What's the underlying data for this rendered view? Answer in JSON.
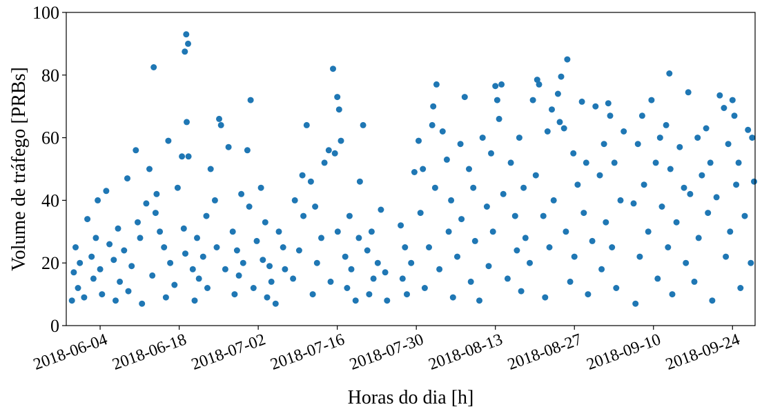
{
  "chart_data": {
    "type": "scatter",
    "title": "",
    "xlabel": "Horas do dia [h]",
    "ylabel": "Volume de tráfego [PRBs]",
    "ylim": [
      0,
      100
    ],
    "yticks": [
      "0",
      "20",
      "40",
      "60",
      "80",
      "100"
    ],
    "xlim": [
      "2018-05-29",
      "2018-09-28"
    ],
    "xticks": [
      "2018-06-04",
      "2018-06-18",
      "2018-07-02",
      "2018-07-16",
      "2018-07-30",
      "2018-08-13",
      "2018-08-27",
      "2018-09-10",
      "2018-09-24"
    ],
    "grid": false,
    "marker_color": "#1f77b4",
    "points": [
      [
        "2018-05-30",
        8
      ],
      [
        "2018-05-30",
        17
      ],
      [
        "2018-05-30",
        25
      ],
      [
        "2018-05-31",
        12
      ],
      [
        "2018-05-31",
        20
      ],
      [
        "2018-06-01",
        34
      ],
      [
        "2018-06-01",
        9
      ],
      [
        "2018-06-02",
        22
      ],
      [
        "2018-06-02",
        15
      ],
      [
        "2018-06-03",
        28
      ],
      [
        "2018-06-03",
        40
      ],
      [
        "2018-06-04",
        18
      ],
      [
        "2018-06-04",
        10
      ],
      [
        "2018-06-05",
        26
      ],
      [
        "2018-06-05",
        43
      ],
      [
        "2018-06-06",
        21
      ],
      [
        "2018-06-06",
        8
      ],
      [
        "2018-06-07",
        31
      ],
      [
        "2018-06-07",
        14
      ],
      [
        "2018-06-08",
        47
      ],
      [
        "2018-06-08",
        24
      ],
      [
        "2018-06-09",
        19
      ],
      [
        "2018-06-09",
        11
      ],
      [
        "2018-06-10",
        56
      ],
      [
        "2018-06-10",
        33
      ],
      [
        "2018-06-11",
        28
      ],
      [
        "2018-06-11",
        7
      ],
      [
        "2018-06-12",
        50
      ],
      [
        "2018-06-12",
        39
      ],
      [
        "2018-06-13",
        82.5
      ],
      [
        "2018-06-13",
        36
      ],
      [
        "2018-06-13",
        16
      ],
      [
        "2018-06-14",
        30
      ],
      [
        "2018-06-14",
        42
      ],
      [
        "2018-06-15",
        25
      ],
      [
        "2018-06-15",
        9
      ],
      [
        "2018-06-16",
        59
      ],
      [
        "2018-06-16",
        20
      ],
      [
        "2018-06-17",
        44
      ],
      [
        "2018-06-17",
        13
      ],
      [
        "2018-06-18",
        54
      ],
      [
        "2018-06-18",
        31
      ],
      [
        "2018-06-19",
        93
      ],
      [
        "2018-06-19",
        90
      ],
      [
        "2018-06-19",
        87.5
      ],
      [
        "2018-06-19",
        65
      ],
      [
        "2018-06-19",
        54
      ],
      [
        "2018-06-19",
        23
      ],
      [
        "2018-06-20",
        18
      ],
      [
        "2018-06-20",
        8
      ],
      [
        "2018-06-21",
        28
      ],
      [
        "2018-06-21",
        15
      ],
      [
        "2018-06-22",
        35
      ],
      [
        "2018-06-22",
        22
      ],
      [
        "2018-06-23",
        50
      ],
      [
        "2018-06-23",
        12
      ],
      [
        "2018-06-24",
        40
      ],
      [
        "2018-06-24",
        25
      ],
      [
        "2018-06-25",
        66
      ],
      [
        "2018-06-25",
        64
      ],
      [
        "2018-06-26",
        57
      ],
      [
        "2018-06-26",
        18
      ],
      [
        "2018-06-27",
        30
      ],
      [
        "2018-06-27",
        10
      ],
      [
        "2018-06-28",
        24
      ],
      [
        "2018-06-28",
        16
      ],
      [
        "2018-06-29",
        42
      ],
      [
        "2018-06-29",
        20
      ],
      [
        "2018-06-30",
        72
      ],
      [
        "2018-06-30",
        56
      ],
      [
        "2018-06-30",
        38
      ],
      [
        "2018-07-01",
        27
      ],
      [
        "2018-07-01",
        12
      ],
      [
        "2018-07-02",
        44
      ],
      [
        "2018-07-02",
        21
      ],
      [
        "2018-07-03",
        33
      ],
      [
        "2018-07-03",
        9
      ],
      [
        "2018-07-04",
        19
      ],
      [
        "2018-07-04",
        14
      ],
      [
        "2018-07-05",
        30
      ],
      [
        "2018-07-05",
        7
      ],
      [
        "2018-07-06",
        25
      ],
      [
        "2018-07-06",
        18
      ],
      [
        "2018-07-08",
        15
      ],
      [
        "2018-07-08",
        40
      ],
      [
        "2018-07-09",
        48
      ],
      [
        "2018-07-09",
        24
      ],
      [
        "2018-07-10",
        64
      ],
      [
        "2018-07-10",
        35
      ],
      [
        "2018-07-11",
        46
      ],
      [
        "2018-07-11",
        10
      ],
      [
        "2018-07-12",
        38
      ],
      [
        "2018-07-12",
        20
      ],
      [
        "2018-07-13",
        52
      ],
      [
        "2018-07-13",
        28
      ],
      [
        "2018-07-14",
        56
      ],
      [
        "2018-07-14",
        14
      ],
      [
        "2018-07-15",
        82
      ],
      [
        "2018-07-15",
        55
      ],
      [
        "2018-07-16",
        73
      ],
      [
        "2018-07-16",
        69
      ],
      [
        "2018-07-16",
        59
      ],
      [
        "2018-07-16",
        30
      ],
      [
        "2018-07-17",
        22
      ],
      [
        "2018-07-17",
        12
      ],
      [
        "2018-07-18",
        35
      ],
      [
        "2018-07-18",
        18
      ],
      [
        "2018-07-19",
        28
      ],
      [
        "2018-07-19",
        8
      ],
      [
        "2018-07-20",
        64
      ],
      [
        "2018-07-20",
        46
      ],
      [
        "2018-07-21",
        24
      ],
      [
        "2018-07-21",
        10
      ],
      [
        "2018-07-22",
        30
      ],
      [
        "2018-07-22",
        15
      ],
      [
        "2018-07-23",
        37
      ],
      [
        "2018-07-23",
        20
      ],
      [
        "2018-07-24",
        17
      ],
      [
        "2018-07-24",
        8
      ],
      [
        "2018-07-27",
        32
      ],
      [
        "2018-07-27",
        15
      ],
      [
        "2018-07-28",
        25
      ],
      [
        "2018-07-28",
        10
      ],
      [
        "2018-07-29",
        49
      ],
      [
        "2018-07-29",
        20
      ],
      [
        "2018-07-30",
        59
      ],
      [
        "2018-07-30",
        36
      ],
      [
        "2018-07-31",
        50
      ],
      [
        "2018-07-31",
        12
      ],
      [
        "2018-08-01",
        64
      ],
      [
        "2018-08-01",
        25
      ],
      [
        "2018-08-02",
        77
      ],
      [
        "2018-08-02",
        70
      ],
      [
        "2018-08-02",
        44
      ],
      [
        "2018-08-03",
        62
      ],
      [
        "2018-08-03",
        18
      ],
      [
        "2018-08-04",
        53
      ],
      [
        "2018-08-04",
        30
      ],
      [
        "2018-08-05",
        40
      ],
      [
        "2018-08-05",
        9
      ],
      [
        "2018-08-06",
        58
      ],
      [
        "2018-08-06",
        22
      ],
      [
        "2018-08-07",
        73
      ],
      [
        "2018-08-07",
        34
      ],
      [
        "2018-08-08",
        50
      ],
      [
        "2018-08-08",
        14
      ],
      [
        "2018-08-09",
        44
      ],
      [
        "2018-08-09",
        27
      ],
      [
        "2018-08-10",
        60
      ],
      [
        "2018-08-10",
        8
      ],
      [
        "2018-08-11",
        38
      ],
      [
        "2018-08-11",
        19
      ],
      [
        "2018-08-12",
        55
      ],
      [
        "2018-08-12",
        30
      ],
      [
        "2018-08-13",
        76.5
      ],
      [
        "2018-08-13",
        72
      ],
      [
        "2018-08-13",
        66
      ],
      [
        "2018-08-14",
        77
      ],
      [
        "2018-08-14",
        42
      ],
      [
        "2018-08-15",
        52
      ],
      [
        "2018-08-15",
        15
      ],
      [
        "2018-08-16",
        35
      ],
      [
        "2018-08-16",
        24
      ],
      [
        "2018-08-17",
        60
      ],
      [
        "2018-08-17",
        11
      ],
      [
        "2018-08-18",
        44
      ],
      [
        "2018-08-18",
        28
      ],
      [
        "2018-08-19",
        72
      ],
      [
        "2018-08-19",
        20
      ],
      [
        "2018-08-20",
        78.5
      ],
      [
        "2018-08-20",
        77
      ],
      [
        "2018-08-20",
        48
      ],
      [
        "2018-08-21",
        35
      ],
      [
        "2018-08-21",
        9
      ],
      [
        "2018-08-22",
        62
      ],
      [
        "2018-08-22",
        25
      ],
      [
        "2018-08-23",
        69
      ],
      [
        "2018-08-23",
        40
      ],
      [
        "2018-08-24",
        79.5
      ],
      [
        "2018-08-24",
        74
      ],
      [
        "2018-08-24",
        65
      ],
      [
        "2018-08-25",
        85
      ],
      [
        "2018-08-25",
        63
      ],
      [
        "2018-08-25",
        30
      ],
      [
        "2018-08-26",
        55
      ],
      [
        "2018-08-26",
        14
      ],
      [
        "2018-08-27",
        45
      ],
      [
        "2018-08-27",
        22
      ],
      [
        "2018-08-28",
        71.5
      ],
      [
        "2018-08-28",
        36
      ],
      [
        "2018-08-29",
        52
      ],
      [
        "2018-08-29",
        10
      ],
      [
        "2018-08-30",
        70
      ],
      [
        "2018-08-30",
        27
      ],
      [
        "2018-08-31",
        48
      ],
      [
        "2018-08-31",
        18
      ],
      [
        "2018-09-01",
        58
      ],
      [
        "2018-09-01",
        33
      ],
      [
        "2018-09-02",
        71
      ],
      [
        "2018-09-02",
        67
      ],
      [
        "2018-09-02",
        25
      ],
      [
        "2018-09-03",
        52
      ],
      [
        "2018-09-03",
        12
      ],
      [
        "2018-09-04",
        62
      ],
      [
        "2018-09-04",
        40
      ],
      [
        "2018-09-06",
        39
      ],
      [
        "2018-09-06",
        7
      ],
      [
        "2018-09-07",
        58
      ],
      [
        "2018-09-07",
        22
      ],
      [
        "2018-09-08",
        67
      ],
      [
        "2018-09-08",
        45
      ],
      [
        "2018-09-09",
        72
      ],
      [
        "2018-09-09",
        30
      ],
      [
        "2018-09-10",
        52
      ],
      [
        "2018-09-10",
        15
      ],
      [
        "2018-09-11",
        60
      ],
      [
        "2018-09-11",
        38
      ],
      [
        "2018-09-12",
        80.5
      ],
      [
        "2018-09-12",
        64
      ],
      [
        "2018-09-12",
        25
      ],
      [
        "2018-09-13",
        50
      ],
      [
        "2018-09-13",
        10
      ],
      [
        "2018-09-14",
        57
      ],
      [
        "2018-09-14",
        33
      ],
      [
        "2018-09-15",
        44
      ],
      [
        "2018-09-15",
        20
      ],
      [
        "2018-09-16",
        74.5
      ],
      [
        "2018-09-16",
        42
      ],
      [
        "2018-09-17",
        60
      ],
      [
        "2018-09-17",
        14
      ],
      [
        "2018-09-18",
        48
      ],
      [
        "2018-09-18",
        28
      ],
      [
        "2018-09-19",
        63
      ],
      [
        "2018-09-19",
        36
      ],
      [
        "2018-09-20",
        52
      ],
      [
        "2018-09-20",
        8
      ],
      [
        "2018-09-21",
        73.5
      ],
      [
        "2018-09-21",
        41
      ],
      [
        "2018-09-22",
        69.5
      ],
      [
        "2018-09-22",
        22
      ],
      [
        "2018-09-23",
        58
      ],
      [
        "2018-09-23",
        30
      ],
      [
        "2018-09-24",
        72
      ],
      [
        "2018-09-24",
        67
      ],
      [
        "2018-09-24",
        45
      ],
      [
        "2018-09-25",
        52
      ],
      [
        "2018-09-25",
        12
      ],
      [
        "2018-09-26",
        62.5
      ],
      [
        "2018-09-26",
        35
      ],
      [
        "2018-09-27",
        60
      ],
      [
        "2018-09-27",
        46
      ],
      [
        "2018-09-27",
        20
      ]
    ]
  }
}
